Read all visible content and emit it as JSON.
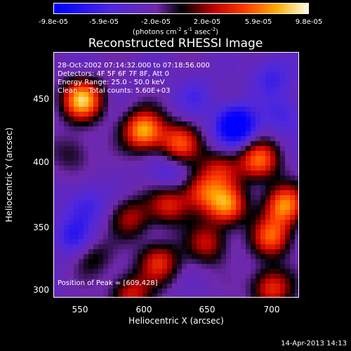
{
  "colorbar": {
    "ticks": [
      "-9.8e-05",
      "-5.9e-05",
      "-2.0e-05",
      "2.0e-05",
      "5.9e-05",
      "9.8e-05"
    ],
    "units": "(photons cm",
    "units_sup1": "-2",
    "units_mid": " s",
    "units_sup2": "-1",
    "units_mid2": " asec",
    "units_sup3": "-2",
    "units_end": ")",
    "range": [
      -9.8e-05,
      9.8e-05
    ]
  },
  "chart_data": {
    "type": "heatmap",
    "title": "Reconstructed RHESSI Image",
    "xlabel": "Heliocentric X (arcsec)",
    "ylabel": "Heliocentric Y (arcsec)",
    "xlim": [
      530,
      722
    ],
    "ylim": [
      297,
      489
    ],
    "xticks": [
      "550",
      "600",
      "650",
      "700"
    ],
    "yticks": [
      "300",
      "350",
      "400",
      "450"
    ],
    "annotations": [
      "28-Oct-2002 07:14:32.000 to 07:18:56.000",
      "Detectors: 4F 5F 6F 7F 8F, Att 0",
      "Energy Range: 25.0 - 50.0 keV",
      "Clean     Total counts: 5.60E+03",
      "Position of Peak = [609,428]"
    ],
    "blobs": [
      {
        "x": 552,
        "y": 452,
        "v": 1.0
      },
      {
        "x": 600,
        "y": 428,
        "v": 0.95
      },
      {
        "x": 628,
        "y": 418,
        "v": 0.7
      },
      {
        "x": 660,
        "y": 398,
        "v": 0.5
      },
      {
        "x": 690,
        "y": 405,
        "v": 0.75
      },
      {
        "x": 710,
        "y": 370,
        "v": 0.85
      },
      {
        "x": 700,
        "y": 345,
        "v": 0.7
      },
      {
        "x": 665,
        "y": 370,
        "v": 0.8
      },
      {
        "x": 645,
        "y": 380,
        "v": 0.6
      },
      {
        "x": 620,
        "y": 370,
        "v": 0.55
      },
      {
        "x": 590,
        "y": 360,
        "v": 0.45
      },
      {
        "x": 650,
        "y": 340,
        "v": 0.5
      },
      {
        "x": 612,
        "y": 325,
        "v": 0.6
      },
      {
        "x": 590,
        "y": 300,
        "v": 0.55
      },
      {
        "x": 700,
        "y": 305,
        "v": 0.65
      },
      {
        "x": 560,
        "y": 330,
        "v": 0.3
      },
      {
        "x": 545,
        "y": 410,
        "v": 0.25
      },
      {
        "x": 672,
        "y": 432,
        "v": -0.9
      },
      {
        "x": 555,
        "y": 370,
        "v": -0.35
      },
      {
        "x": 545,
        "y": 345,
        "v": -0.4
      },
      {
        "x": 700,
        "y": 470,
        "v": -0.35
      },
      {
        "x": 640,
        "y": 455,
        "v": -0.25
      },
      {
        "x": 620,
        "y": 395,
        "v": -0.3
      },
      {
        "x": 710,
        "y": 440,
        "v": -0.3
      }
    ]
  },
  "timestamp": "14-Apr-2013 14:13"
}
